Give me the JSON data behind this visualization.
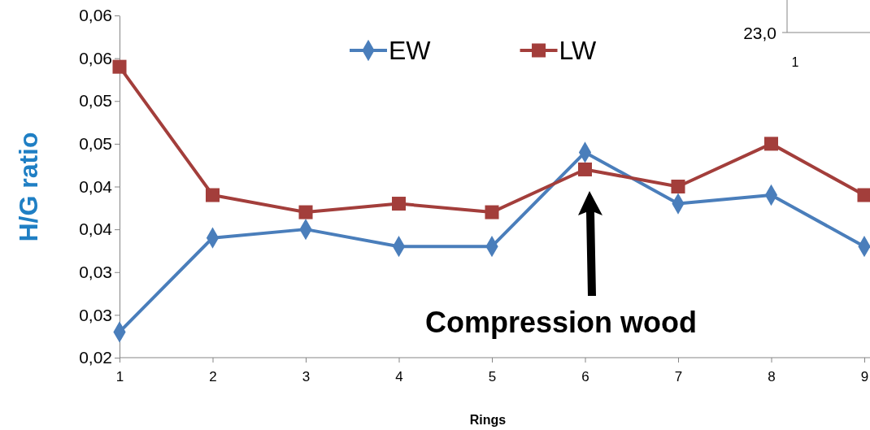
{
  "chart_data": {
    "type": "line",
    "xlabel": "Rings",
    "ylabel": "H/G ratio",
    "categories": [
      "1",
      "2",
      "3",
      "4",
      "5",
      "6",
      "7",
      "8",
      "9"
    ],
    "series": [
      {
        "name": "EW",
        "color": "#4a7ebb",
        "marker": "diamond",
        "values": [
          0.023,
          0.034,
          0.035,
          0.033,
          0.033,
          0.044,
          0.038,
          0.039,
          0.033
        ]
      },
      {
        "name": "LW",
        "color": "#a33e3b",
        "marker": "square",
        "values": [
          0.054,
          0.039,
          0.037,
          0.038,
          0.037,
          0.042,
          0.04,
          0.045,
          0.039
        ]
      }
    ],
    "ylim": [
      0.02,
      0.06
    ],
    "yticks": [
      {
        "value": 0.02,
        "label": "0,02"
      },
      {
        "value": 0.025,
        "label": "0,03"
      },
      {
        "value": 0.03,
        "label": "0,03"
      },
      {
        "value": 0.035,
        "label": "0,04"
      },
      {
        "value": 0.04,
        "label": "0,04"
      },
      {
        "value": 0.045,
        "label": "0,05"
      },
      {
        "value": 0.05,
        "label": "0,05"
      },
      {
        "value": 0.055,
        "label": "0,06"
      },
      {
        "value": 0.06,
        "label": "0,06"
      }
    ],
    "grid": false,
    "legend": "top",
    "annotations": [
      "Compression wood",
      "23,0",
      "1"
    ]
  }
}
